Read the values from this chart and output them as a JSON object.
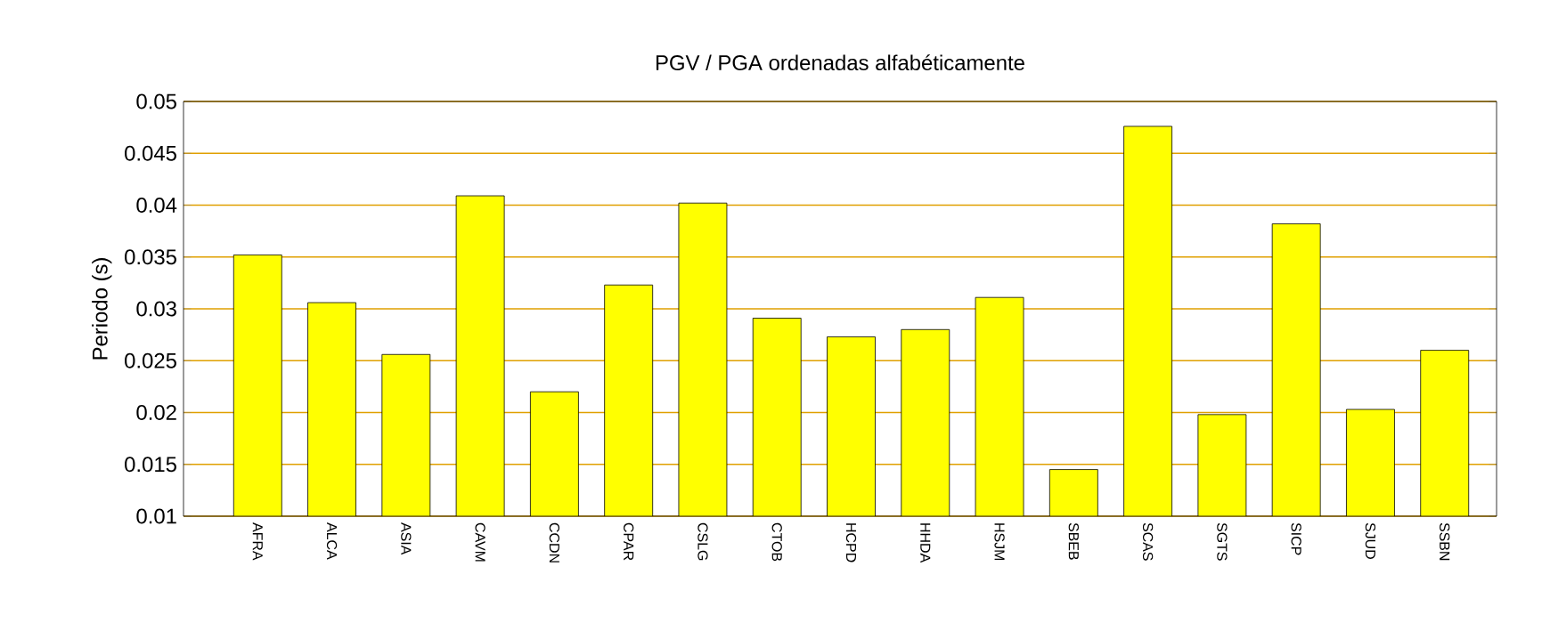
{
  "chart_data": {
    "type": "bar",
    "title": "PGV / PGA ordenadas alfabéticamente",
    "ylabel": "Periodo (s)",
    "categories": [
      "AFRA",
      "ALCA",
      "ASIA",
      "CAVM",
      "CCDN",
      "CPAR",
      "CSLG",
      "CTOB",
      "HCPD",
      "HHDA",
      "HSJM",
      "SBEB",
      "SCAS",
      "SGTS",
      "SICP",
      "SJUD",
      "SSBN"
    ],
    "values": [
      0.0352,
      0.0306,
      0.0256,
      0.0409,
      0.022,
      0.0323,
      0.0402,
      0.0291,
      0.0273,
      0.028,
      0.0311,
      0.0145,
      0.0476,
      0.0198,
      0.0382,
      0.0203,
      0.026
    ],
    "color": "#ffff00",
    "ylim": [
      0.01,
      0.05
    ],
    "yticks": [
      0.01,
      0.015,
      0.02,
      0.025,
      0.03,
      0.035,
      0.04,
      0.045,
      0.05
    ],
    "grid": "y"
  }
}
